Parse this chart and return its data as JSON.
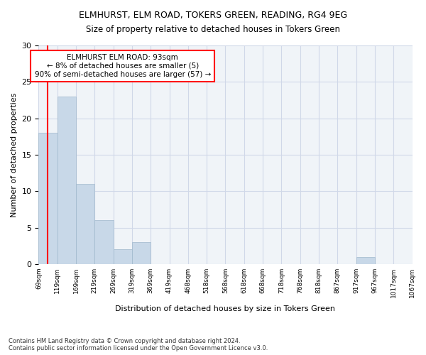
{
  "title": "ELMHURST, ELM ROAD, TOKERS GREEN, READING, RG4 9EG",
  "subtitle": "Size of property relative to detached houses in Tokers Green",
  "xlabel": "Distribution of detached houses by size in Tokers Green",
  "ylabel": "Number of detached properties",
  "bar_values": [
    18,
    23,
    11,
    6,
    2,
    3,
    0,
    0,
    0,
    0,
    0,
    0,
    0,
    0,
    0,
    0,
    0,
    1,
    0,
    0
  ],
  "bin_labels": [
    "69sqm",
    "119sqm",
    "169sqm",
    "219sqm",
    "269sqm",
    "319sqm",
    "369sqm",
    "419sqm",
    "468sqm",
    "518sqm",
    "568sqm",
    "618sqm",
    "668sqm",
    "718sqm",
    "768sqm",
    "818sqm",
    "867sqm",
    "917sqm",
    "967sqm",
    "1017sqm",
    "1067sqm"
  ],
  "bar_color": "#c8d8e8",
  "bar_edge_color": "#a0b8cc",
  "grid_color": "#d0d8e8",
  "background_color": "#f0f4f8",
  "annotation_text": "ELMHURST ELM ROAD: 93sqm\n← 8% of detached houses are smaller (5)\n90% of semi-detached houses are larger (57) →",
  "annotation_box_color": "white",
  "annotation_box_edge_color": "red",
  "vline_x": 0.48,
  "vline_color": "red",
  "ylim": [
    0,
    30
  ],
  "yticks": [
    0,
    5,
    10,
    15,
    20,
    25,
    30
  ],
  "footnote": "Contains HM Land Registry data © Crown copyright and database right 2024.\nContains public sector information licensed under the Open Government Licence v3.0."
}
